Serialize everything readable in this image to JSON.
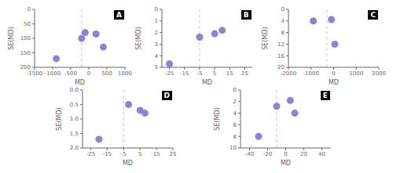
{
  "chart_data": [
    {
      "type": "scatter",
      "title": "A",
      "xlabel": "MD",
      "ylabel": "SE(MD)",
      "xlim": [
        -1500,
        1000
      ],
      "ylim": [
        200,
        0
      ],
      "xticks": [
        -1500,
        -1000,
        -500,
        0,
        500,
        1000
      ],
      "yticks": [
        0,
        50,
        100,
        150,
        200
      ],
      "vline_x": -200,
      "x": [
        -900,
        -200,
        -100,
        200,
        400
      ],
      "values": [
        170,
        100,
        80,
        85,
        130
      ],
      "color": "#8884d8"
    },
    {
      "type": "scatter",
      "title": "B",
      "xlabel": "MD",
      "ylabel": "SE(MD)",
      "xlim": [
        -30,
        30
      ],
      "ylim": [
        5,
        0
      ],
      "xticks": [
        -25,
        -15,
        -5,
        5,
        15,
        25
      ],
      "yticks": [
        0,
        1,
        2,
        3,
        4,
        5
      ],
      "vline_x": -5,
      "x": [
        -25,
        -5,
        5,
        10
      ],
      "values": [
        4.7,
        2.4,
        2.1,
        1.8
      ],
      "color": "#8884d8"
    },
    {
      "type": "scatter",
      "title": "C",
      "xlabel": "MD",
      "ylabel": "SE(MD)",
      "xlim": [
        -2000,
        2000
      ],
      "ylim": [
        20,
        0
      ],
      "xticks": [
        -2000,
        -1000,
        0,
        1000,
        2000
      ],
      "yticks": [
        0,
        4,
        8,
        12,
        16,
        20
      ],
      "vline_x": -300,
      "x": [
        -900,
        -100,
        50
      ],
      "values": [
        4,
        3.5,
        12
      ],
      "color": "#8884d8"
    },
    {
      "type": "scatter",
      "title": "D",
      "xlabel": "MD",
      "ylabel": "SE(MD)",
      "xlim": [
        -30,
        25
      ],
      "ylim": [
        2.0,
        0
      ],
      "xticks": [
        -25,
        -15,
        -5,
        5,
        15,
        25
      ],
      "yticks": [
        {
          "value": 0,
          "label": "0.0"
        },
        0.5,
        {
          "value": 1.0,
          "label": "1.0"
        },
        1.5,
        {
          "value": 2.0,
          "label": "2.0"
        }
      ],
      "vline_x": -5,
      "x": [
        -20,
        -2,
        5,
        8
      ],
      "values": [
        1.7,
        0.5,
        0.7,
        0.8
      ],
      "color": "#8884d8"
    },
    {
      "type": "scatter",
      "title": "E",
      "xlabel": "MD",
      "ylabel": "SE(MD)",
      "xlim": [
        -50,
        50
      ],
      "ylim": [
        10,
        0
      ],
      "xticks": [
        -40,
        -20,
        0,
        20,
        40
      ],
      "yticks": [
        0,
        2,
        4,
        6,
        8,
        10
      ],
      "vline_x": -10,
      "x": [
        -30,
        -10,
        5,
        10
      ],
      "values": [
        8,
        2.8,
        1.8,
        4
      ],
      "color": "#8884d8"
    }
  ]
}
